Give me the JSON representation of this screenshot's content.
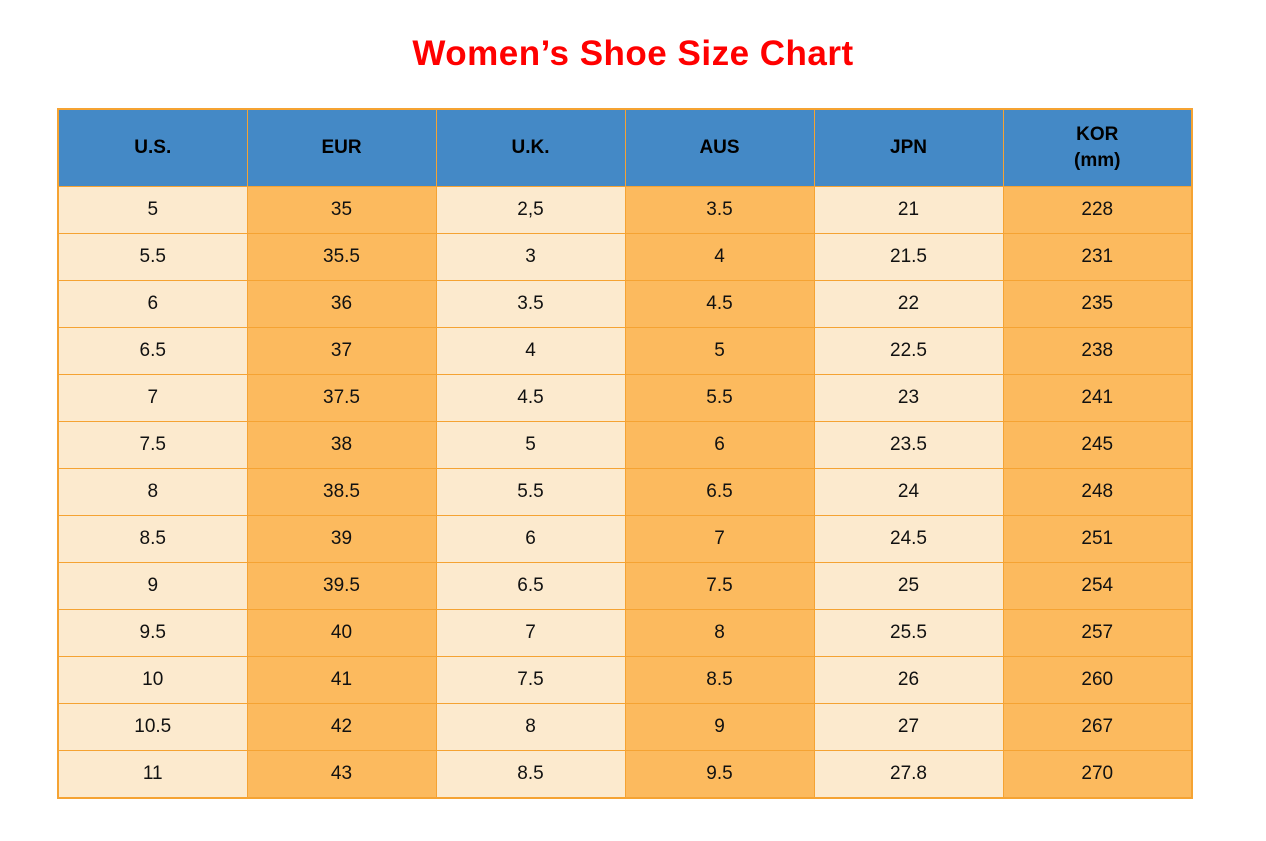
{
  "title": {
    "text": "Women’s Shoe Size Chart",
    "color": "#ff0000"
  },
  "table": {
    "columns": [
      {
        "label": "U.S."
      },
      {
        "label": "EUR"
      },
      {
        "label": "U.K."
      },
      {
        "label": "AUS"
      },
      {
        "label": "JPN"
      },
      {
        "label": "KOR",
        "sublabel": "(mm)"
      }
    ],
    "rows": [
      [
        "5",
        "35",
        "2,5",
        "3.5",
        "21",
        "228"
      ],
      [
        "5.5",
        "35.5",
        "3",
        "4",
        "21.5",
        "231"
      ],
      [
        "6",
        "36",
        "3.5",
        "4.5",
        "22",
        "235"
      ],
      [
        "6.5",
        "37",
        "4",
        "5",
        "22.5",
        "238"
      ],
      [
        "7",
        "37.5",
        "4.5",
        "5.5",
        "23",
        "241"
      ],
      [
        "7.5",
        "38",
        "5",
        "6",
        "23.5",
        "245"
      ],
      [
        "8",
        "38.5",
        "5.5",
        "6.5",
        "24",
        "248"
      ],
      [
        "8.5",
        "39",
        "6",
        "7",
        "24.5",
        "251"
      ],
      [
        "9",
        "39.5",
        "6.5",
        "7.5",
        "25",
        "254"
      ],
      [
        "9.5",
        "40",
        "7",
        "8",
        "25.5",
        "257"
      ],
      [
        "10",
        "41",
        "7.5",
        "8.5",
        "26",
        "260"
      ],
      [
        "10.5",
        "42",
        "8",
        "9",
        "27",
        "267"
      ],
      [
        "11",
        "43",
        "8.5",
        "9.5",
        "27.8",
        "270"
      ]
    ],
    "colors": {
      "header_bg": "#4489c6",
      "header_text": "#000000",
      "cell_cream": "#fceace",
      "cell_orange": "#fcba5e",
      "border": "#f5a333",
      "title_red": "#ff0000"
    }
  },
  "chart_data": {
    "type": "table",
    "title": "Women’s Shoe Size Chart",
    "columns": [
      "U.S.",
      "EUR",
      "U.K.",
      "AUS",
      "JPN",
      "KOR (mm)"
    ],
    "rows": [
      [
        "5",
        "35",
        "2,5",
        "3.5",
        "21",
        "228"
      ],
      [
        "5.5",
        "35.5",
        "3",
        "4",
        "21.5",
        "231"
      ],
      [
        "6",
        "36",
        "3.5",
        "4.5",
        "22",
        "235"
      ],
      [
        "6.5",
        "37",
        "4",
        "5",
        "22.5",
        "238"
      ],
      [
        "7",
        "37.5",
        "4.5",
        "5.5",
        "23",
        "241"
      ],
      [
        "7.5",
        "38",
        "5",
        "6",
        "23.5",
        "245"
      ],
      [
        "8",
        "38.5",
        "5.5",
        "6.5",
        "24",
        "248"
      ],
      [
        "8.5",
        "39",
        "6",
        "7",
        "24.5",
        "251"
      ],
      [
        "9",
        "39.5",
        "6.5",
        "7.5",
        "25",
        "254"
      ],
      [
        "9.5",
        "40",
        "7",
        "8",
        "25.5",
        "257"
      ],
      [
        "10",
        "41",
        "7.5",
        "8.5",
        "26",
        "260"
      ],
      [
        "10.5",
        "42",
        "8",
        "9",
        "27",
        "267"
      ],
      [
        "11",
        "43",
        "8.5",
        "9.5",
        "27.8",
        "270"
      ]
    ],
    "layout": {
      "column_fill_pattern": [
        "cream",
        "orange",
        "cream",
        "orange",
        "cream",
        "orange"
      ],
      "header_fill": "blue"
    }
  }
}
